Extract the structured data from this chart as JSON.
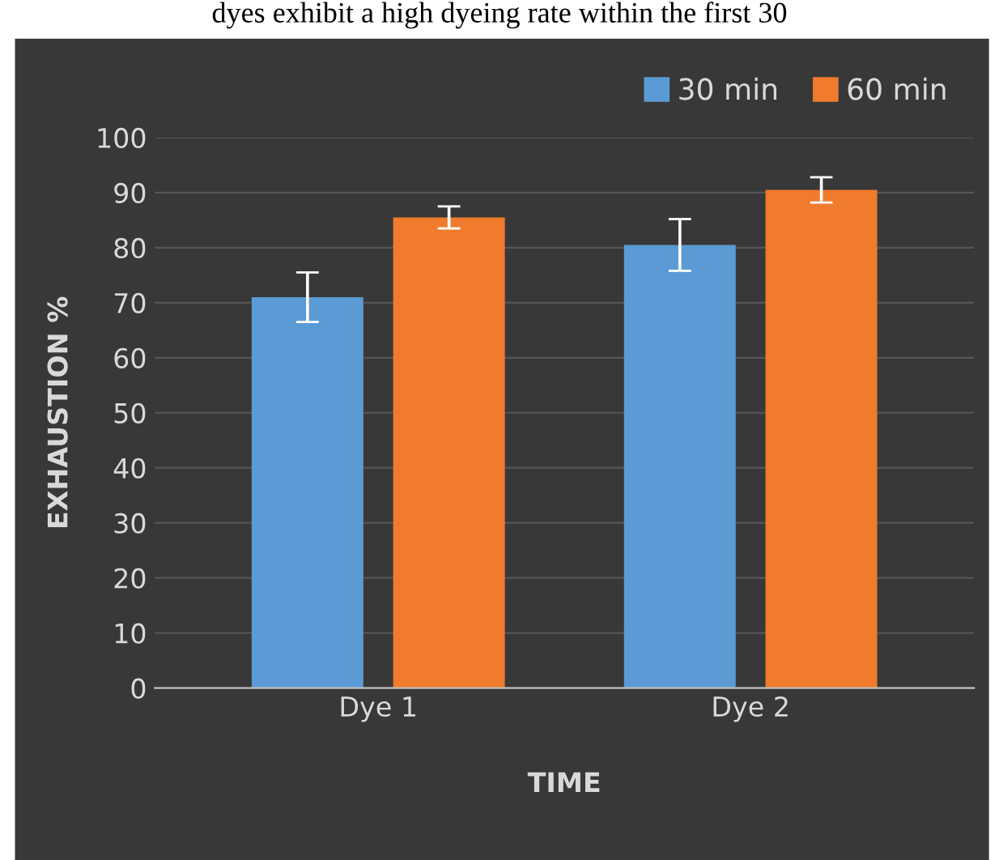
{
  "chart_data": {
    "type": "bar",
    "xlabel": "TIME",
    "ylabel": "EXHAUSTION %",
    "categories": [
      "Dye 1",
      "Dye 2"
    ],
    "series": [
      {
        "name": "30 min",
        "color": "#5b9bd5",
        "values": [
          71,
          80.5
        ],
        "errors": [
          4.5,
          4.7
        ]
      },
      {
        "name": "60 min",
        "color": "#f07b2c",
        "values": [
          85.5,
          90.5
        ],
        "errors": [
          2,
          2.3
        ]
      }
    ],
    "ylim": [
      0,
      100
    ],
    "yticks": [
      0,
      10,
      20,
      30,
      40,
      50,
      60,
      70,
      80,
      90,
      100
    ],
    "grid": "y",
    "legend": "top right",
    "annotations": [
      "dyes exhibit a high dyeing rate within the first 30"
    ]
  }
}
